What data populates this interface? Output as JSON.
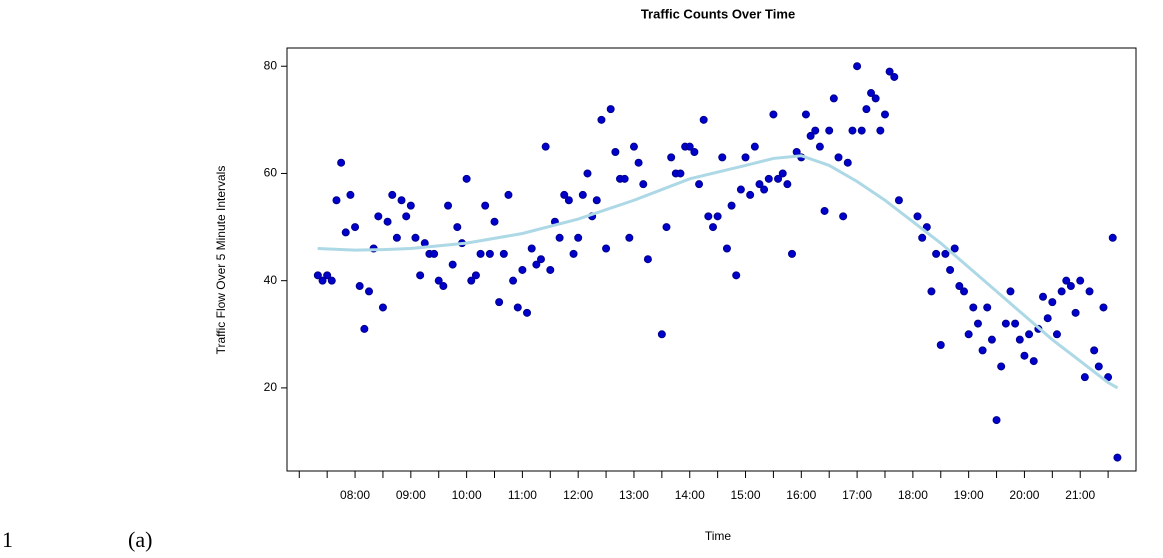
{
  "chart_data": {
    "type": "scatter",
    "title": "Traffic Counts Over Time",
    "xlabel": "Time",
    "ylabel": "Traffic Flow Over 5 Minute Intervals",
    "xlim": [
      6.78,
      22.0
    ],
    "ylim": [
      4.5,
      83.4
    ],
    "xticks": [
      {
        "value": 8,
        "label": "08:00"
      },
      {
        "value": 9,
        "label": "09:00"
      },
      {
        "value": 10,
        "label": "10:00"
      },
      {
        "value": 11,
        "label": "11:00"
      },
      {
        "value": 12,
        "label": "12:00"
      },
      {
        "value": 13,
        "label": "13:00"
      },
      {
        "value": 14,
        "label": "14:00"
      },
      {
        "value": 15,
        "label": "15:00"
      },
      {
        "value": 16,
        "label": "16:00"
      },
      {
        "value": 17,
        "label": "17:00"
      },
      {
        "value": 18,
        "label": "18:00"
      },
      {
        "value": 19,
        "label": "19:00"
      },
      {
        "value": 20,
        "label": "20:00"
      },
      {
        "value": 21,
        "label": "21:00"
      }
    ],
    "xminorticks": [
      7,
      7.5,
      8.5,
      9.5,
      10.5,
      11.5,
      12.5,
      13.5,
      14.5,
      15.5,
      16.5,
      17.5,
      18.5,
      19.5,
      20.5,
      21.5
    ],
    "yticks": [
      20,
      40,
      60,
      80
    ],
    "series": [
      {
        "type": "scatter",
        "color": "#0000cd",
        "x": [
          7.333,
          7.417,
          7.5,
          7.583,
          7.667,
          7.75,
          7.833,
          7.917,
          8,
          8.083,
          8.167,
          8.25,
          8.333,
          8.417,
          8.5,
          8.583,
          8.667,
          8.75,
          8.833,
          8.917,
          9,
          9.083,
          9.167,
          9.25,
          9.333,
          9.417,
          9.5,
          9.583,
          9.667,
          9.75,
          9.833,
          9.917,
          10,
          10.083,
          10.167,
          10.25,
          10.333,
          10.417,
          10.5,
          10.583,
          10.667,
          10.75,
          10.833,
          10.917,
          11,
          11.083,
          11.167,
          11.25,
          11.333,
          11.417,
          11.5,
          11.583,
          11.667,
          11.75,
          11.833,
          11.917,
          12,
          12.083,
          12.167,
          12.25,
          12.333,
          12.417,
          12.5,
          12.583,
          12.667,
          12.75,
          12.833,
          12.917,
          13,
          13.083,
          13.167,
          13.25,
          13.5,
          13.583,
          13.667,
          13.75,
          13.833,
          13.917,
          14,
          14.083,
          14.167,
          14.25,
          14.333,
          14.417,
          14.5,
          14.583,
          14.667,
          14.75,
          14.833,
          14.917,
          15,
          15.083,
          15.167,
          15.25,
          15.333,
          15.417,
          15.5,
          15.583,
          15.667,
          15.75,
          15.833,
          15.917,
          16,
          16.083,
          16.167,
          16.25,
          16.333,
          16.417,
          16.5,
          16.583,
          16.667,
          16.75,
          16.833,
          16.917,
          17,
          17.083,
          17.167,
          17.25,
          17.333,
          17.417,
          17.5,
          17.583,
          17.667,
          17.75,
          18.083,
          18.167,
          18.25,
          18.333,
          18.417,
          18.5,
          18.583,
          18.667,
          18.75,
          18.833,
          18.917,
          19,
          19.083,
          19.167,
          19.25,
          19.333,
          19.417,
          19.5,
          19.583,
          19.667,
          19.75,
          19.833,
          19.917,
          20,
          20.083,
          20.167,
          20.25,
          20.333,
          20.417,
          20.5,
          20.583,
          20.667,
          20.75,
          20.833,
          20.917,
          21,
          21.083,
          21.167,
          21.25,
          21.333,
          21.417,
          21.5,
          21.583,
          21.667
        ],
        "values": [
          41,
          40,
          41,
          40,
          55,
          62,
          49,
          56,
          50,
          39,
          31,
          38,
          46,
          52,
          35,
          51,
          56,
          48,
          55,
          52,
          54,
          48,
          41,
          47,
          45,
          45,
          40,
          39,
          54,
          43,
          50,
          47,
          59,
          40,
          41,
          45,
          54,
          45,
          51,
          36,
          45,
          56,
          40,
          35,
          42,
          34,
          46,
          43,
          44,
          65,
          42,
          51,
          48,
          56,
          55,
          45,
          48,
          56,
          60,
          52,
          55,
          70,
          46,
          72,
          64,
          59,
          59,
          48,
          65,
          62,
          58,
          44,
          30,
          50,
          63,
          60,
          60,
          65,
          65,
          64,
          58,
          70,
          52,
          50,
          52,
          63,
          46,
          54,
          41,
          57,
          63,
          56,
          65,
          58,
          57,
          59,
          71,
          59,
          60,
          58,
          45,
          64,
          63,
          71,
          67,
          68,
          65,
          53,
          68,
          74,
          63,
          52,
          62,
          68,
          80,
          68,
          72,
          75,
          74,
          68,
          71,
          79,
          78,
          55,
          52,
          48,
          50,
          38,
          45,
          28,
          45,
          42,
          46,
          39,
          38,
          30,
          35,
          32,
          27,
          35,
          29,
          14,
          24,
          32,
          38,
          32,
          29,
          26,
          30,
          25,
          31,
          37,
          33,
          36,
          30,
          38,
          40,
          39,
          34,
          40,
          22,
          38,
          27,
          24,
          35,
          22,
          48,
          7
        ]
      },
      {
        "type": "line",
        "color": "#add8e6",
        "x": [
          7.33,
          8,
          8.5,
          9,
          10,
          11,
          12,
          13,
          14,
          15,
          15.5,
          16,
          16.5,
          17,
          17.5,
          18,
          18.5,
          19,
          19.5,
          20,
          20.5,
          21,
          21.5,
          21.67
        ],
        "values": [
          46,
          45.7,
          45.8,
          46,
          47,
          48.8,
          51.5,
          55,
          59,
          61.5,
          62.8,
          63.3,
          61.5,
          58.5,
          55,
          51,
          47,
          42.5,
          38,
          33.5,
          29,
          25,
          21,
          20
        ]
      }
    ]
  },
  "caption": {
    "number": "1",
    "label": "(a)"
  }
}
